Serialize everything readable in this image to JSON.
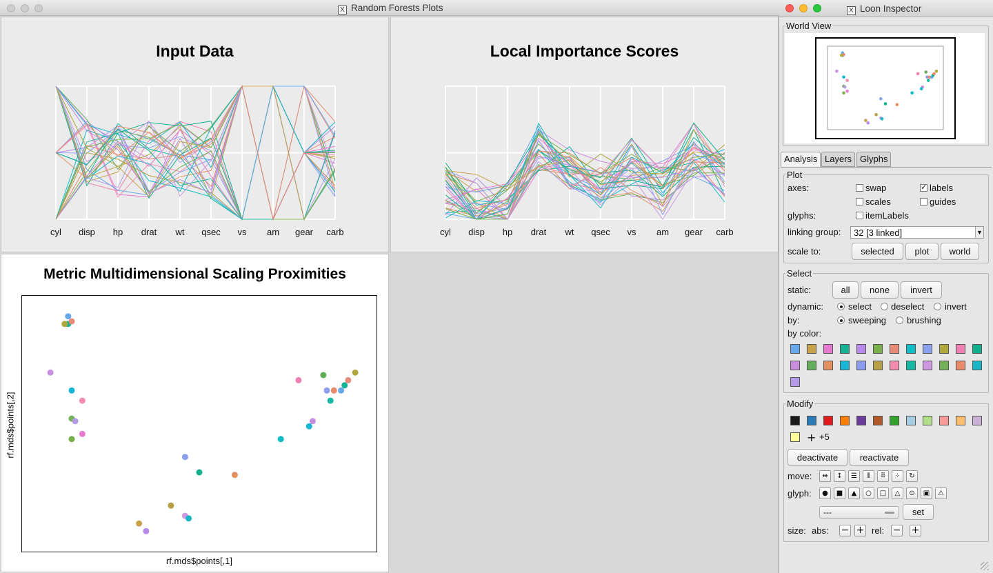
{
  "main_window": {
    "title": "Random Forests Plots"
  },
  "panels": {
    "input_data": {
      "title": "Input Data",
      "axes": [
        "cyl",
        "disp",
        "hp",
        "drat",
        "wt",
        "qsec",
        "vs",
        "am",
        "gear",
        "carb"
      ]
    },
    "importance": {
      "title": "Local Importance Scores",
      "axes": [
        "cyl",
        "disp",
        "hp",
        "drat",
        "wt",
        "qsec",
        "vs",
        "am",
        "gear",
        "carb"
      ]
    },
    "mds": {
      "title": "Metric Multidimensional Scaling Proximities",
      "xlabel": "rf.mds$points[,1]",
      "ylabel": "rf.mds$points[,2]"
    }
  },
  "colors": [
    "#67a9ec",
    "#c8a24a",
    "#e57ad0",
    "#15b394",
    "#b689ea",
    "#79b04b",
    "#e88a78",
    "#0fbec4",
    "#8aa0ec",
    "#b0a83c",
    "#ef7fb0",
    "#11b08c",
    "#c98ee0",
    "#65ac5c",
    "#e49162",
    "#18b6d6",
    "#8e9cf0",
    "#b79f45",
    "#f28db0",
    "#15b8a3",
    "#cc98e0",
    "#73b057",
    "#e98b6a",
    "#19b6c6",
    "#b39be8"
  ],
  "inspector": {
    "title": "Loon Inspector",
    "world_view": "World View",
    "tabs": [
      "Analysis",
      "Layers",
      "Glyphs"
    ],
    "plot": {
      "legend": "Plot",
      "axes_label": "axes:",
      "glyphs_label": "glyphs:",
      "swap": "swap",
      "labels": "labels",
      "scales": "scales",
      "guides": "guides",
      "item_labels": "itemLabels",
      "labels_checked": true,
      "linking_label": "linking group:",
      "linking_value": "32  [3 linked]",
      "scale_label": "scale to:",
      "scale_buttons": [
        "selected",
        "plot",
        "world"
      ]
    },
    "select": {
      "legend": "Select",
      "static_label": "static:",
      "static_buttons": [
        "all",
        "none",
        "invert"
      ],
      "dynamic_label": "dynamic:",
      "dynamic_options": [
        "select",
        "deselect",
        "invert"
      ],
      "dynamic_selected": "select",
      "by_label": "by:",
      "by_options": [
        "sweeping",
        "brushing"
      ],
      "by_selected": "sweeping",
      "by_color_label": "by color:"
    },
    "modify": {
      "legend": "Modify",
      "palette": [
        "#1a1a1a",
        "#2c7bb6",
        "#e31a1c",
        "#ff7f00",
        "#6a3d9a",
        "#b15928",
        "#33a02c",
        "#a6cee3",
        "#b2df8a",
        "#fb9a99",
        "#fdbf6f",
        "#cab2d6",
        "#ffff99"
      ],
      "more_label": "+5",
      "deactivate": "deactivate",
      "reactivate": "reactivate",
      "move_label": "move:",
      "glyph_label": "glyph:",
      "glyph_select_value": "---",
      "set_button": "set",
      "size_label": "size:",
      "abs_label": "abs:",
      "rel_label": "rel:"
    }
  }
}
